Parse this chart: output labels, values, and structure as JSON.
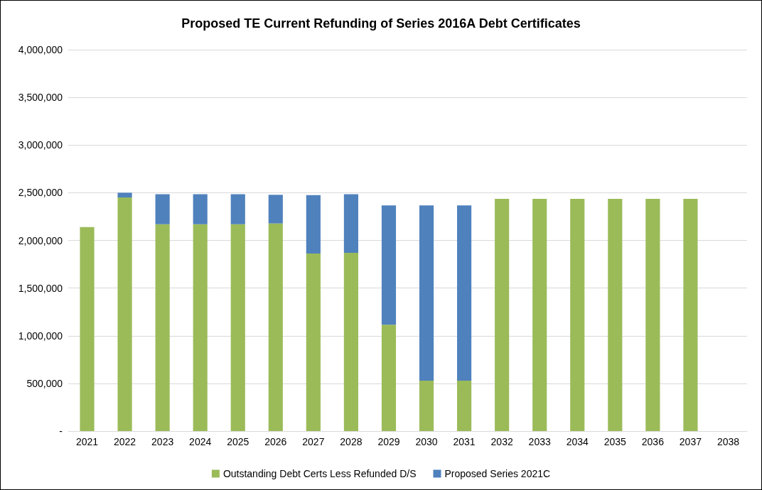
{
  "chart_data": {
    "type": "bar",
    "title": "Proposed TE Current Refunding of Series 2016A Debt Certificates",
    "categories": [
      "2021",
      "2022",
      "2023",
      "2024",
      "2025",
      "2026",
      "2027",
      "2028",
      "2029",
      "2030",
      "2031",
      "2032",
      "2033",
      "2034",
      "2035",
      "2036",
      "2037",
      "2038"
    ],
    "stacked": true,
    "series": [
      {
        "name": "Outstanding Debt Certs Less Refunded D/S",
        "color": "#9bbb59",
        "values": [
          2140000,
          2450000,
          2170000,
          2170000,
          2170000,
          2178000,
          1862000,
          1870000,
          1115000,
          528000,
          528000,
          2436000,
          2436000,
          2436000,
          2436000,
          2436000,
          2436000,
          null
        ]
      },
      {
        "name": "Proposed Series 2021C",
        "color": "#4f81bd",
        "values": [
          null,
          50000,
          315000,
          315000,
          315000,
          300000,
          612000,
          615000,
          1252000,
          1839000,
          1839000,
          null,
          null,
          null,
          null,
          null,
          null,
          null
        ]
      }
    ],
    "ylim": [
      0,
      4000000
    ],
    "yticks": [
      {
        "value": 0,
        "label": "-"
      },
      {
        "value": 500000,
        "label": "500,000"
      },
      {
        "value": 1000000,
        "label": "1,000,000"
      },
      {
        "value": 1500000,
        "label": "1,500,000"
      },
      {
        "value": 2000000,
        "label": "2,000,000"
      },
      {
        "value": 2500000,
        "label": "2,500,000"
      },
      {
        "value": 3000000,
        "label": "3,000,000"
      },
      {
        "value": 3500000,
        "label": "3,500,000"
      },
      {
        "value": 4000000,
        "label": "4,000,000"
      }
    ],
    "grid": "y",
    "legend": "bottom"
  }
}
